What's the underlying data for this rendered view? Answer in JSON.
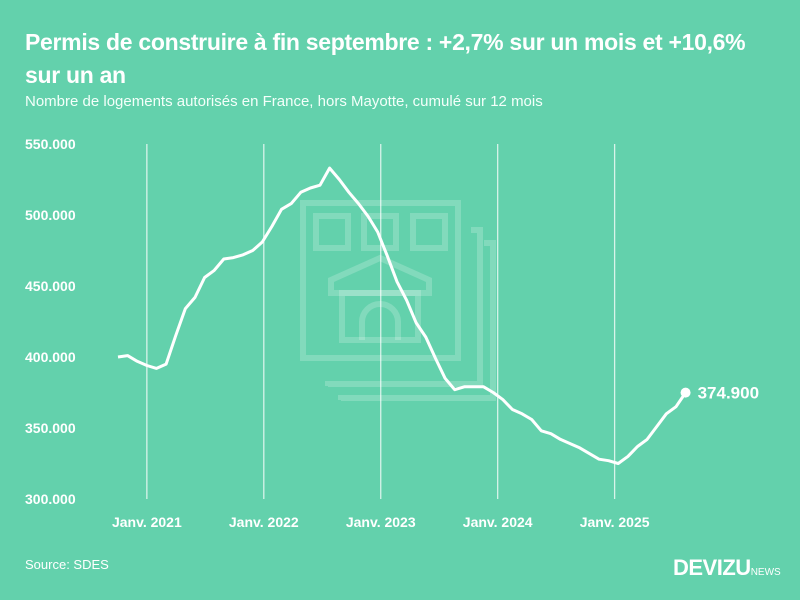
{
  "header": {
    "title": "Permis de construire à fin septembre : +2,7% sur un mois et +10,6% sur un an",
    "subtitle": "Nombre de logements autorisés en France, hors Mayotte, cumulé sur 12 mois"
  },
  "footer": {
    "source": "Source: SDES",
    "logo_main": "DEVIZU",
    "logo_suffix": "NEWS"
  },
  "colors": {
    "background": "#63d1ac",
    "line": "#ffffff"
  },
  "chart_data": {
    "type": "line",
    "title": "Permis de construire à fin septembre : +2,7% sur un mois et +10,6% sur un an",
    "x_start": "2020-10",
    "x_end": "2025-09",
    "x_frequency": "monthly",
    "ylim": [
      300000,
      550000
    ],
    "yticks": [
      300000,
      350000,
      400000,
      450000,
      500000,
      550000
    ],
    "ytick_labels": [
      "300.000",
      "350.000",
      "400.000",
      "450.000",
      "500.000",
      "550.000"
    ],
    "xtick_labels": [
      "Janv. 2021",
      "Janv. 2022",
      "Janv. 2023",
      "Janv. 2024",
      "Janv. 2025"
    ],
    "grid": "vertical lines at January",
    "values": [
      400000,
      401000,
      397000,
      394000,
      392000,
      395000,
      415000,
      434000,
      442000,
      456000,
      461000,
      469000,
      470000,
      472000,
      475000,
      481000,
      492000,
      504000,
      508000,
      516000,
      519000,
      521000,
      533000,
      525000,
      516000,
      508000,
      499000,
      488000,
      471000,
      453000,
      440000,
      424000,
      414000,
      399000,
      385000,
      377000,
      379000,
      379000,
      379000,
      375000,
      370000,
      363000,
      360000,
      356000,
      348000,
      346000,
      342000,
      339000,
      336000,
      332000,
      328000,
      327000,
      325000,
      330000,
      337000,
      342000,
      351000,
      360000,
      365000,
      374900
    ],
    "end_label": "374.900"
  }
}
